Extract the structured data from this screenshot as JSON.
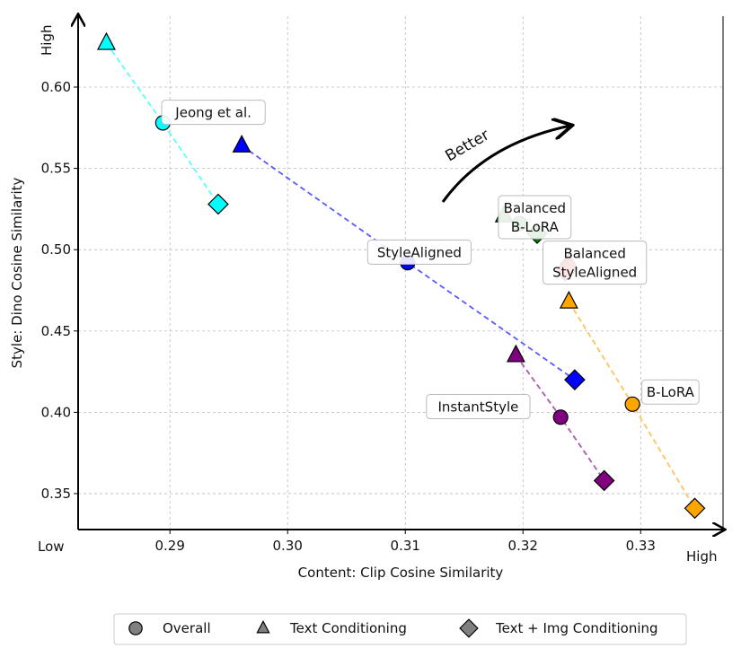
{
  "chart_data": {
    "type": "scatter",
    "xlabel": "Content: Clip Cosine Similarity",
    "ylabel": "Style: Dino Cosine Similarity",
    "xlim": [
      0.2822,
      0.337
    ],
    "ylim": [
      0.3279,
      0.6436
    ],
    "xticks": [
      "0.29",
      "0.30",
      "0.31",
      "0.32",
      "0.33"
    ],
    "xtick_values": [
      0.29,
      0.3,
      0.31,
      0.32,
      0.33
    ],
    "yticks": [
      "0.35",
      "0.40",
      "0.45",
      "0.50",
      "0.55",
      "0.60"
    ],
    "ytick_values": [
      0.35,
      0.4,
      0.45,
      0.5,
      0.55,
      0.6
    ],
    "x_low_label": "Low",
    "x_high_label": "High",
    "y_high_label": "High",
    "grid": true,
    "better_label": "Better",
    "series": [
      {
        "name": "Jeong et al.",
        "color": "#00ffff",
        "dashed_line": true,
        "points": {
          "text": [
            0.2846,
            0.627
          ],
          "overall": [
            0.2894,
            0.578
          ],
          "text_img": [
            0.2941,
            0.528
          ]
        },
        "label_lines": [
          "Jeong et al."
        ],
        "label_at": [
          0.2893,
          0.5845
        ],
        "label_align": "start"
      },
      {
        "name": "StyleAligned",
        "color": "#0000ff",
        "dashed_line": true,
        "points": {
          "text": [
            0.2961,
            0.564
          ],
          "overall": [
            0.3102,
            0.492
          ],
          "text_img": [
            0.3244,
            0.42
          ]
        },
        "label_lines": [
          "StyleAligned"
        ],
        "label_at": [
          0.3068,
          0.4985
        ],
        "label_align": "start"
      },
      {
        "name": "Balanced B-LoRA",
        "color": "#008000",
        "dashed_line": false,
        "points": {
          "text": [
            0.3184,
            0.521
          ],
          "overall": [
            0.3197,
            0.516
          ],
          "text_img": [
            0.3212,
            0.51
          ]
        },
        "label_lines": [
          "Balanced",
          "B-LoRA"
        ],
        "label_at": [
          0.321,
          0.52
        ],
        "label_align": "center"
      },
      {
        "name": "Balanced StyleAligned",
        "color": "#ff0000",
        "dashed_line": false,
        "points": {
          "text": [
            0.3239,
            0.492
          ],
          "overall": [
            0.3238,
            0.49
          ],
          "text_img": [
            0.3236,
            0.487
          ]
        },
        "label_lines": [
          "Balanced",
          "StyleAligned"
        ],
        "label_at": [
          0.3261,
          0.492
        ],
        "label_align": "center"
      },
      {
        "name": "B-LoRA",
        "color": "#ffa500",
        "dashed_line": true,
        "points": {
          "text": [
            0.3239,
            0.468
          ],
          "overall": [
            0.3293,
            0.405
          ],
          "text_img": [
            0.3346,
            0.341
          ]
        },
        "label_lines": [
          "B-LoRA"
        ],
        "label_at": [
          0.3301,
          0.4125
        ],
        "label_align": "start"
      },
      {
        "name": "InstantStyle",
        "color": "#800080",
        "dashed_line": true,
        "points": {
          "text": [
            0.3194,
            0.435
          ],
          "overall": [
            0.3232,
            0.397
          ],
          "text_img": [
            0.3269,
            0.358
          ]
        },
        "label_lines": [
          "InstantStyle"
        ],
        "label_at": [
          0.3118,
          0.4035
        ],
        "label_align": "start"
      }
    ],
    "legend": {
      "placement": "bottom-center",
      "entries": [
        {
          "marker": "circle",
          "label": "Overall"
        },
        {
          "marker": "triangle",
          "label": "Text Conditioning"
        },
        {
          "marker": "diamond",
          "label": "Text + Img Conditioning"
        }
      ]
    }
  }
}
